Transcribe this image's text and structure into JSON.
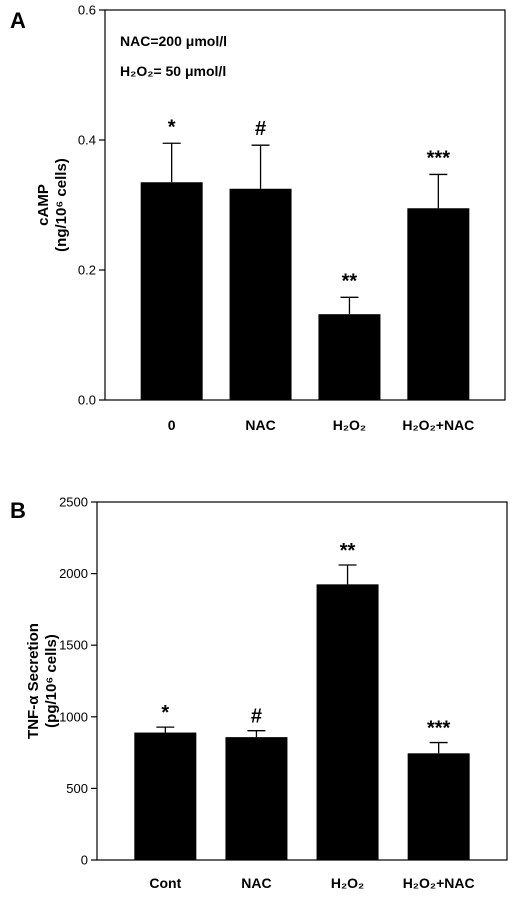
{
  "chart_data": [
    {
      "type": "bar",
      "panel_label": "A",
      "ylabel_line1": "cAMP",
      "ylabel_line2": "(ng/10⁶ cells)",
      "annotations": [
        "NAC=200 μmol/l",
        "H₂O₂= 50 μmol/l"
      ],
      "categories": [
        "0",
        "NAC",
        "H₂O₂",
        "H₂O₂+NAC"
      ],
      "values": [
        0.335,
        0.325,
        0.132,
        0.295
      ],
      "errors": [
        0.06,
        0.067,
        0.026,
        0.052
      ],
      "significance": [
        "*",
        "#",
        "**",
        "***"
      ],
      "ylim": [
        0,
        0.6
      ],
      "yticks": [
        0,
        0.2,
        0.4,
        0.6
      ],
      "ytick_labels": [
        "0.0",
        "0.2",
        "0.4",
        "0.6"
      ],
      "bar_color": "#000000",
      "grid": false
    },
    {
      "type": "bar",
      "panel_label": "B",
      "ylabel_line1": "TNF-α Secretion",
      "ylabel_line2": "(pg/10⁶ cells)",
      "annotations": [],
      "categories": [
        "Cont",
        "NAC",
        "H₂O₂",
        "H₂O₂+NAC"
      ],
      "values": [
        890,
        858,
        1925,
        745
      ],
      "errors": [
        38,
        45,
        135,
        75
      ],
      "significance": [
        "*",
        "#",
        "**",
        "***"
      ],
      "ylim": [
        0,
        2500
      ],
      "yticks": [
        0,
        500,
        1000,
        1500,
        2000,
        2500
      ],
      "ytick_labels": [
        "0",
        "500",
        "1000",
        "1500",
        "2000",
        "2500"
      ],
      "bar_color": "#000000",
      "grid": false
    }
  ]
}
